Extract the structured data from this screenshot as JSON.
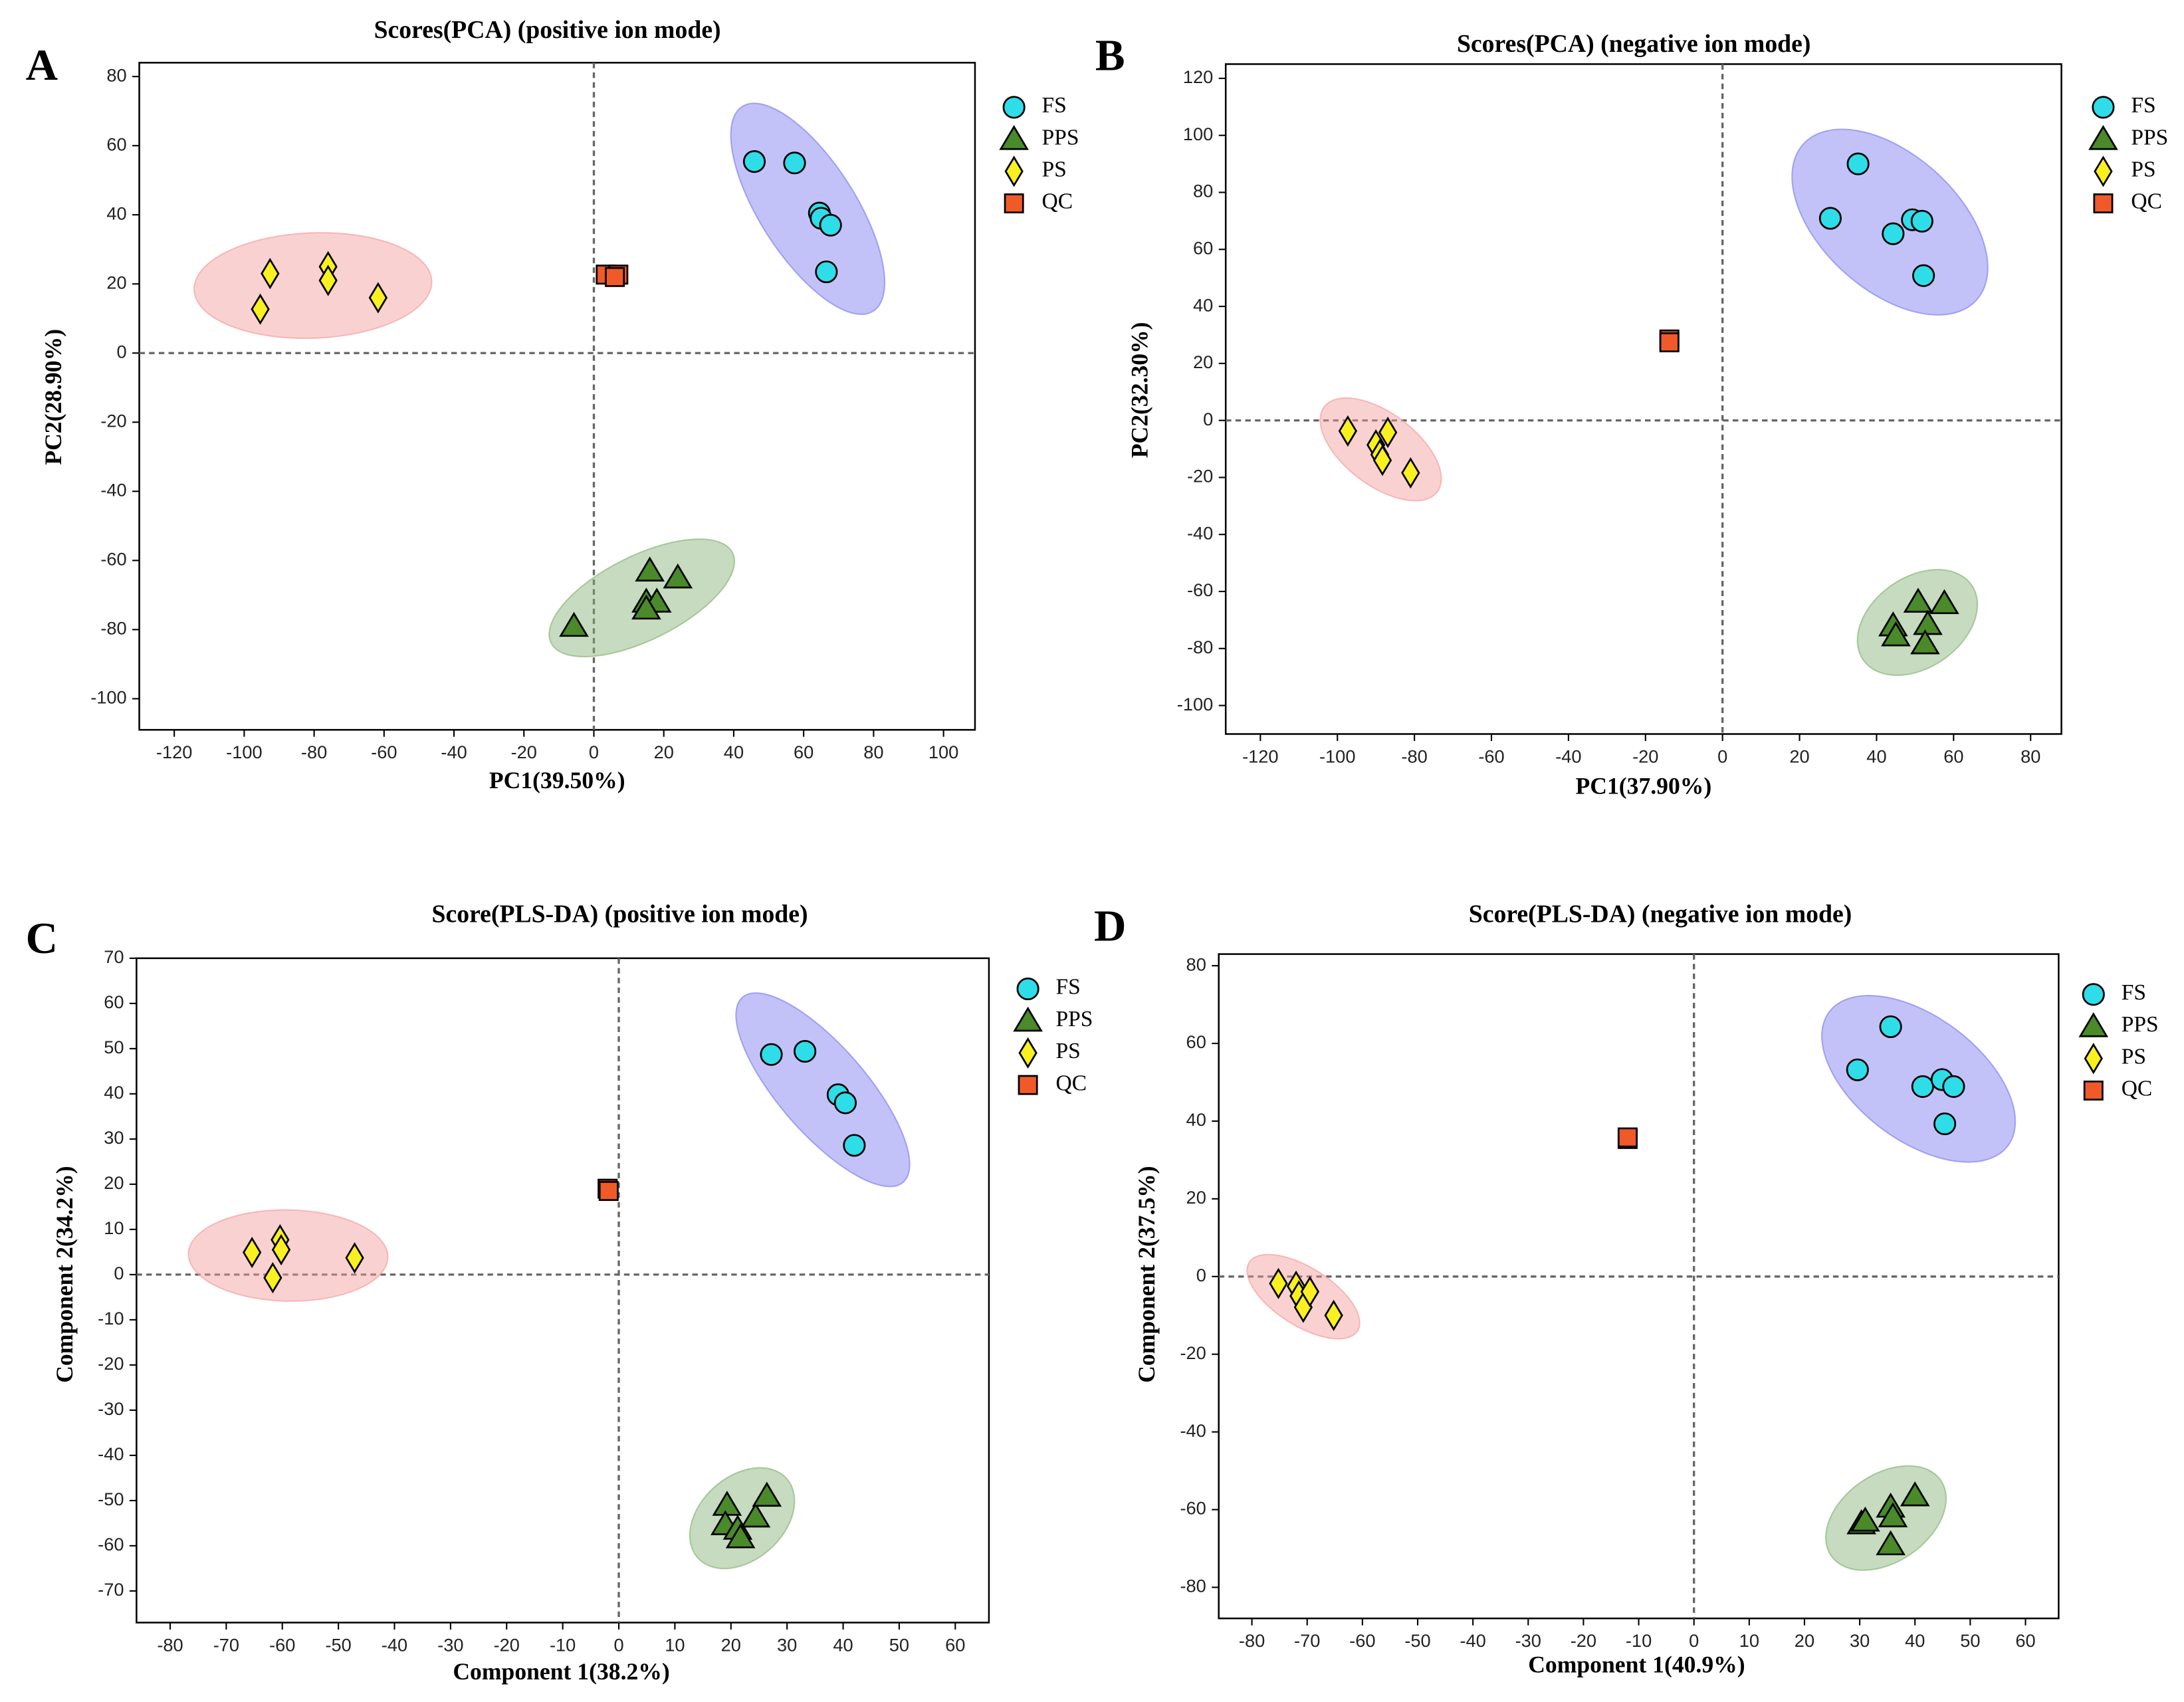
{
  "chart_data": [
    {
      "type": "scatter",
      "label": "A",
      "title": "Scores(PCA) (positive ion mode)",
      "x_label": "PC1(39.50%)",
      "y_label": "PC2(28.90%)",
      "xlim": [
        -130,
        109
      ],
      "ylim": [
        -109,
        84
      ],
      "xticks": [
        -120,
        -100,
        -80,
        -60,
        -40,
        -20,
        0,
        20,
        40,
        60,
        80,
        100
      ],
      "yticks": [
        80,
        60,
        40,
        20,
        0,
        -20,
        -40,
        -60,
        -80,
        -100
      ],
      "series": [
        {
          "name": "FS",
          "color": "#2fdde8",
          "marker": "circle",
          "region_color": "#7a78f0",
          "x": [
            45.9,
            57.4,
            64.5,
            65,
            67.7,
            66.5
          ],
          "y": [
            55.4,
            55,
            40.5,
            39,
            37,
            23.5
          ]
        },
        {
          "name": "PPS",
          "color": "#4a8a2a",
          "marker": "triangle",
          "region_color": "#80b070",
          "x": [
            -5.7,
            16,
            24,
            15,
            18,
            15
          ],
          "y": [
            -79,
            -63,
            -65,
            -72,
            -72,
            -74
          ]
        },
        {
          "name": "PS",
          "color": "#f8f020",
          "marker": "diamond",
          "region_color": "#f49a9a",
          "x": [
            -95.4,
            -92.6,
            -76,
            -76,
            -61.7
          ],
          "y": [
            12.7,
            23,
            25,
            21,
            16
          ]
        },
        {
          "name": "QC",
          "color": "#f05a28",
          "marker": "square",
          "x": [
            3.4,
            7,
            6
          ],
          "y": [
            22.7,
            22.7,
            22
          ]
        }
      ]
    },
    {
      "type": "scatter",
      "label": "B",
      "title": "Scores(PCA) (negative ion mode)",
      "x_label": "PC1(37.90%)",
      "y_label": "PC2(32.30%)",
      "xlim": [
        -129,
        88
      ],
      "ylim": [
        -110,
        125
      ],
      "xticks": [
        -120,
        -100,
        -80,
        -60,
        -40,
        -20,
        0,
        20,
        40,
        60,
        80
      ],
      "yticks": [
        120,
        100,
        80,
        60,
        40,
        20,
        0,
        -20,
        -40,
        -60,
        -80,
        -100
      ],
      "series": [
        {
          "name": "FS",
          "color": "#2fdde8",
          "marker": "circle",
          "region_color": "#7a78f0",
          "x": [
            28,
            35.2,
            44.3,
            49.3,
            51.8,
            52.2
          ],
          "y": [
            70.9,
            90,
            65.5,
            70.4,
            69.9,
            50.8
          ]
        },
        {
          "name": "PPS",
          "color": "#4a8a2a",
          "marker": "triangle",
          "region_color": "#80b070",
          "x": [
            44.3,
            45,
            50.8,
            53.3,
            52.6,
            57.6
          ],
          "y": [
            -72,
            -75.5,
            -63.7,
            -71.5,
            -78.3,
            -64.2
          ]
        },
        {
          "name": "PS",
          "color": "#f8f020",
          "marker": "diamond",
          "region_color": "#f49a9a",
          "x": [
            -97.3,
            -90,
            -89,
            -88.3,
            -86.9,
            -81
          ],
          "y": [
            -3.7,
            -8.6,
            -12,
            -14,
            -4.2,
            -18.4
          ]
        },
        {
          "name": "QC",
          "color": "#f05a28",
          "marker": "square",
          "x": [
            -13.8,
            -13.8
          ],
          "y": [
            28.4,
            27.4
          ]
        }
      ]
    },
    {
      "type": "scatter",
      "label": "C",
      "title": "Score(PLS-DA) (positive ion mode)",
      "x_label": "Component 1(38.2%)",
      "y_label": "Component 2(34.2%)",
      "xlim": [
        -86,
        66
      ],
      "ylim": [
        -77,
        70
      ],
      "xticks": [
        -80,
        -70,
        -60,
        -50,
        -40,
        -30,
        -20,
        -10,
        0,
        10,
        20,
        30,
        40,
        50,
        60
      ],
      "yticks": [
        70,
        60,
        50,
        40,
        30,
        20,
        10,
        0,
        -10,
        -20,
        -30,
        -40,
        -50,
        -60,
        -70
      ],
      "series": [
        {
          "name": "FS",
          "color": "#2fdde8",
          "marker": "circle",
          "region_color": "#7a78f0",
          "x": [
            27.2,
            33.2,
            39.1,
            40.4,
            42
          ],
          "y": [
            48.7,
            49.4,
            39.8,
            38,
            28.6
          ]
        },
        {
          "name": "PPS",
          "color": "#4a8a2a",
          "marker": "triangle",
          "region_color": "#80b070",
          "x": [
            19.3,
            19,
            21.2,
            21.7,
            24.4,
            26.4
          ],
          "y": [
            -51,
            -55.3,
            -56.3,
            -58.2,
            -53.6,
            -49
          ]
        },
        {
          "name": "PS",
          "color": "#f8f020",
          "marker": "diamond",
          "region_color": "#f49a9a",
          "x": [
            -65.4,
            -60.4,
            -60.2,
            -61.7,
            -47.1
          ],
          "y": [
            4.9,
            7.7,
            5.5,
            -0.7,
            3.7
          ]
        },
        {
          "name": "QC",
          "color": "#f05a28",
          "marker": "square",
          "x": [
            -2,
            -1.8
          ],
          "y": [
            19,
            18.5
          ]
        }
      ]
    },
    {
      "type": "scatter",
      "label": "D",
      "title": "Score(PLS-DA) (negative ion mode)",
      "x_label": "Component 1(40.9%)",
      "y_label": "Component 2(37.5%)",
      "xlim": [
        -86,
        66
      ],
      "ylim": [
        -88,
        83
      ],
      "xticks": [
        -80,
        -70,
        -60,
        -50,
        -40,
        -30,
        -20,
        -10,
        0,
        10,
        20,
        30,
        40,
        50,
        60
      ],
      "yticks": [
        80,
        60,
        40,
        20,
        0,
        -20,
        -40,
        -60,
        -80
      ],
      "series": [
        {
          "name": "FS",
          "color": "#2fdde8",
          "marker": "circle",
          "region_color": "#7a78f0",
          "x": [
            29.6,
            35.6,
            41.4,
            44.9,
            47,
            45.4
          ],
          "y": [
            53.2,
            64.3,
            48.9,
            50.7,
            48.9,
            39.3
          ]
        },
        {
          "name": "PPS",
          "color": "#4a8a2a",
          "marker": "triangle",
          "region_color": "#80b070",
          "x": [
            30.3,
            31,
            35.6,
            36,
            40,
            35.6
          ],
          "y": [
            -63.6,
            -62.9,
            -59.3,
            -61.8,
            -56.4,
            -69
          ]
        },
        {
          "name": "PS",
          "color": "#f8f020",
          "marker": "diamond",
          "region_color": "#f49a9a",
          "x": [
            -75.2,
            -72,
            -71.5,
            -70.7,
            -69.5,
            -65.2
          ],
          "y": [
            -1.8,
            -2.5,
            -5,
            -7.9,
            -3.9,
            -10
          ]
        },
        {
          "name": "QC",
          "color": "#f05a28",
          "marker": "square",
          "x": [
            -12,
            -12
          ],
          "y": [
            35.4,
            35.8
          ]
        }
      ]
    }
  ]
}
